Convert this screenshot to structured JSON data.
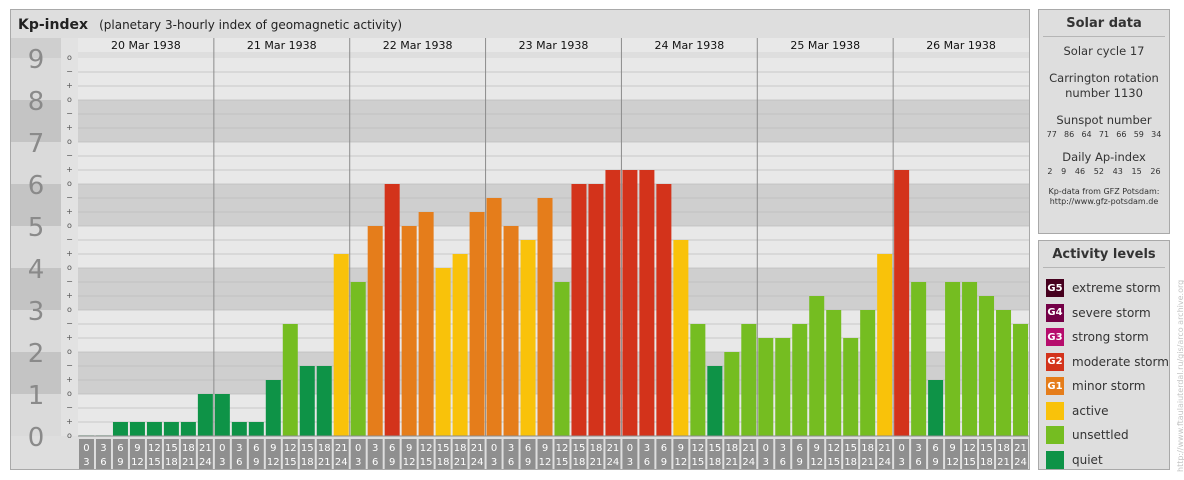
{
  "header": {
    "title": "Kp-index",
    "subtitle": "(planetary 3-hourly index of geomagnetic activity)"
  },
  "chart_data": {
    "type": "bar",
    "y_range": [
      0,
      9
    ],
    "y_ticks": [
      0,
      1,
      2,
      3,
      4,
      5,
      6,
      7,
      8,
      9
    ],
    "minor_ticks": [
      "+",
      "o",
      "−"
    ],
    "days": [
      "20 Mar 1938",
      "21 Mar 1938",
      "22 Mar 1938",
      "23 Mar 1938",
      "24 Mar 1938",
      "25 Mar 1938",
      "26 Mar 1938"
    ],
    "hours_top": [
      "0",
      "3",
      "6",
      "9",
      "12",
      "15",
      "18",
      "21"
    ],
    "hours_bottom": [
      "3",
      "6",
      "9",
      "12",
      "15",
      "18",
      "21",
      "24"
    ],
    "values": [
      0,
      0,
      0.333,
      0.333,
      0.333,
      0.333,
      0.333,
      1,
      1,
      0.333,
      0.333,
      1.333,
      2.667,
      1.667,
      1.667,
      4.333,
      3.667,
      5,
      6,
      5,
      5.333,
      4,
      4.333,
      5.333,
      5.667,
      5,
      4.667,
      5.667,
      3.667,
      6,
      6,
      6.333,
      6.333,
      6.333,
      6,
      4.667,
      2.667,
      1.667,
      2,
      2.667,
      2.333,
      2.333,
      2.667,
      3.333,
      3,
      2.333,
      3,
      4.333,
      6.333,
      3.667,
      1.333,
      3.667,
      3.667,
      3.333,
      3,
      2.667
    ],
    "colors": {
      "quiet": "#0e9347",
      "unsettled": "#75bd21",
      "active": "#f9c20a",
      "G1": "#e57d1b",
      "G2": "#d3331b",
      "G3": "#b60d6d",
      "G4": "#730046",
      "G5": "#46001e"
    }
  },
  "solar": {
    "title": "Solar data",
    "cycle": "Solar cycle 17",
    "carrington_line1": "Carrington rotation",
    "carrington_line2": "number 1130",
    "sunspot_label": "Sunspot number",
    "sunspot_values": [
      "77",
      "86",
      "64",
      "71",
      "66",
      "59",
      "34"
    ],
    "ap_label": "Daily Ap-index",
    "ap_values": [
      "2",
      "9",
      "46",
      "52",
      "43",
      "15",
      "26"
    ],
    "credit_line1": "Kp-data from GFZ Potsdam:",
    "credit_line2": "http://www.gfz-potsdam.de"
  },
  "levels": {
    "title": "Activity levels",
    "items": [
      {
        "badge": "G5",
        "label": "extreme storm",
        "color": "#46001e"
      },
      {
        "badge": "G4",
        "label": "severe storm",
        "color": "#730046"
      },
      {
        "badge": "G3",
        "label": "strong storm",
        "color": "#b60d6d"
      },
      {
        "badge": "G2",
        "label": "moderate storm",
        "color": "#d3331b"
      },
      {
        "badge": "G1",
        "label": "minor storm",
        "color": "#e57d1b"
      },
      {
        "badge": "",
        "label": "active",
        "color": "#f9c20a"
      },
      {
        "badge": "",
        "label": "unsettled",
        "color": "#75bd21"
      },
      {
        "badge": "",
        "label": "quiet",
        "color": "#0e9347"
      }
    ]
  },
  "footer": {
    "vertical_credit": "http://www.ftaulaiuterdal.ru/gis/arco  archive.org"
  }
}
